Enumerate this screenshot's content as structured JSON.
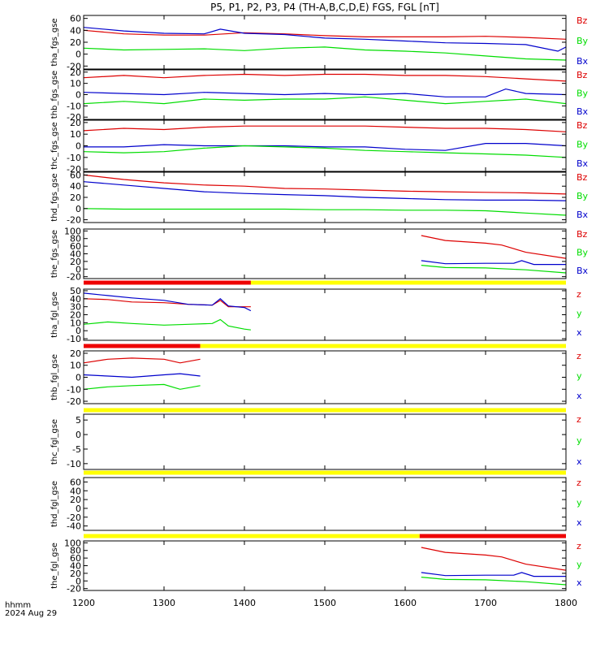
{
  "title": "P5, P1, P2, P3, P4 (TH-A,B,C,D,E) FGS, FGL [nT]",
  "footer": {
    "unit": "hhmm",
    "date": "2024 Aug 29"
  },
  "colors": {
    "x": "#0000cc",
    "y": "#00dd00",
    "z": "#dd0000",
    "bar_yellow": "#ffff00",
    "bar_red": "#ee0000"
  },
  "chart_data": [
    {
      "type": "line",
      "ylabel": "tha_fgs_gse",
      "ylim": [
        -25,
        65
      ],
      "yticks": [
        -20,
        0,
        20,
        40,
        60
      ],
      "xlim": [
        1200,
        1800
      ],
      "xticks": [
        1200,
        1300,
        1400,
        1500,
        1600,
        1700,
        1800
      ],
      "legend": [
        "Bz",
        "By",
        "Bx"
      ],
      "series": [
        {
          "name": "Bz",
          "color": "z",
          "x": [
            1200,
            1250,
            1300,
            1350,
            1400,
            1450,
            1500,
            1550,
            1600,
            1650,
            1700,
            1750,
            1800
          ],
          "values": [
            40,
            34,
            32,
            32,
            36,
            34,
            31,
            29,
            29,
            29,
            30,
            28,
            25
          ]
        },
        {
          "name": "By",
          "color": "x",
          "x": [
            1200,
            1250,
            1300,
            1350,
            1370,
            1400,
            1450,
            1500,
            1550,
            1600,
            1650,
            1700,
            1750,
            1790,
            1800
          ],
          "values": [
            45,
            39,
            35,
            34,
            42,
            35,
            33,
            27,
            25,
            22,
            19,
            18,
            16,
            5,
            12
          ]
        },
        {
          "name": "Bx",
          "color": "y",
          "x": [
            1200,
            1250,
            1300,
            1350,
            1400,
            1450,
            1500,
            1550,
            1600,
            1650,
            1700,
            1750,
            1800
          ],
          "values": [
            10,
            7,
            8,
            9,
            6,
            10,
            12,
            7,
            5,
            2,
            -3,
            -8,
            -10
          ]
        }
      ]
    },
    {
      "type": "line",
      "ylabel": "thb_fgs_gse",
      "ylim": [
        -22,
        22
      ],
      "yticks": [
        -20,
        -10,
        0,
        10,
        20
      ],
      "xlim": [
        1200,
        1800
      ],
      "xticks": [
        1200,
        1300,
        1400,
        1500,
        1600,
        1700,
        1800
      ],
      "legend": [
        "Bz",
        "By",
        "Bx"
      ],
      "series": [
        {
          "name": "Bz",
          "color": "z",
          "x": [
            1200,
            1250,
            1300,
            1350,
            1400,
            1450,
            1500,
            1550,
            1600,
            1650,
            1700,
            1750,
            1800
          ],
          "values": [
            15,
            17,
            15,
            17,
            18,
            17,
            18,
            18,
            17,
            17,
            16,
            14,
            12
          ]
        },
        {
          "name": "By",
          "color": "x",
          "x": [
            1200,
            1250,
            1300,
            1350,
            1400,
            1450,
            1500,
            1550,
            1600,
            1650,
            1700,
            1725,
            1750,
            1800
          ],
          "values": [
            2,
            1,
            0,
            2,
            1,
            0,
            1,
            0,
            1,
            -2,
            -2,
            5,
            1,
            0
          ]
        },
        {
          "name": "Bx",
          "color": "y",
          "x": [
            1200,
            1250,
            1300,
            1350,
            1400,
            1450,
            1500,
            1550,
            1600,
            1650,
            1700,
            1750,
            1800
          ],
          "values": [
            -8,
            -6,
            -8,
            -4,
            -5,
            -4,
            -4,
            -2,
            -5,
            -8,
            -6,
            -4,
            -8
          ]
        }
      ]
    },
    {
      "type": "line",
      "ylabel": "thc_fgs_gse",
      "ylim": [
        -22,
        22
      ],
      "yticks": [
        -20,
        -10,
        0,
        10,
        20
      ],
      "xlim": [
        1200,
        1800
      ],
      "xticks": [
        1200,
        1300,
        1400,
        1500,
        1600,
        1700,
        1800
      ],
      "legend": [
        "Bz",
        "By",
        "Bx"
      ],
      "series": [
        {
          "name": "Bz",
          "color": "z",
          "x": [
            1200,
            1250,
            1300,
            1350,
            1400,
            1450,
            1500,
            1550,
            1600,
            1650,
            1700,
            1750,
            1800
          ],
          "values": [
            13,
            15,
            14,
            16,
            17,
            17,
            17,
            17,
            16,
            15,
            15,
            14,
            12
          ]
        },
        {
          "name": "By",
          "color": "x",
          "x": [
            1200,
            1250,
            1300,
            1350,
            1400,
            1450,
            1500,
            1550,
            1600,
            1650,
            1700,
            1750,
            1800
          ],
          "values": [
            -1,
            -1,
            1,
            0,
            0,
            0,
            -1,
            -1,
            -3,
            -4,
            2,
            2,
            0
          ]
        },
        {
          "name": "Bx",
          "color": "y",
          "x": [
            1200,
            1250,
            1300,
            1350,
            1400,
            1450,
            1500,
            1550,
            1600,
            1650,
            1700,
            1750,
            1800
          ],
          "values": [
            -5,
            -6,
            -5,
            -2,
            0,
            -1,
            -2,
            -4,
            -5,
            -6,
            -7,
            -8,
            -10
          ]
        }
      ]
    },
    {
      "type": "line",
      "ylabel": "thd_fgs_gse",
      "ylim": [
        -25,
        65
      ],
      "yticks": [
        -20,
        0,
        20,
        40,
        60
      ],
      "xlim": [
        1200,
        1800
      ],
      "xticks": [
        1200,
        1300,
        1400,
        1500,
        1600,
        1700,
        1800
      ],
      "legend": [
        "Bz",
        "By",
        "Bx"
      ],
      "series": [
        {
          "name": "Bz",
          "color": "z",
          "x": [
            1200,
            1250,
            1300,
            1350,
            1400,
            1450,
            1500,
            1550,
            1600,
            1650,
            1700,
            1750,
            1800
          ],
          "values": [
            60,
            52,
            46,
            42,
            40,
            36,
            35,
            33,
            31,
            30,
            29,
            28,
            26
          ]
        },
        {
          "name": "By",
          "color": "x",
          "x": [
            1200,
            1250,
            1300,
            1350,
            1400,
            1450,
            1500,
            1550,
            1600,
            1650,
            1700,
            1750,
            1800
          ],
          "values": [
            48,
            42,
            36,
            30,
            27,
            25,
            23,
            20,
            18,
            16,
            15,
            15,
            14
          ]
        },
        {
          "name": "Bx",
          "color": "y",
          "x": [
            1200,
            1250,
            1300,
            1350,
            1400,
            1450,
            1500,
            1550,
            1600,
            1650,
            1700,
            1750,
            1800
          ],
          "values": [
            0,
            -1,
            -1,
            -1,
            -1,
            -1,
            -2,
            -2,
            -3,
            -3,
            -4,
            -8,
            -12
          ]
        }
      ]
    },
    {
      "type": "line",
      "ylabel": "the_fgs_gse",
      "ylim": [
        -25,
        105
      ],
      "yticks": [
        -20,
        0,
        20,
        40,
        60,
        80,
        100
      ],
      "xlim": [
        1200,
        1800
      ],
      "xticks": [
        1200,
        1300,
        1400,
        1500,
        1600,
        1700,
        1800
      ],
      "legend": [
        "Bz",
        "By",
        "Bx"
      ],
      "series": [
        {
          "name": "Bz",
          "color": "z",
          "x": [
            1620,
            1650,
            1700,
            1720,
            1750,
            1800
          ],
          "values": [
            88,
            75,
            68,
            63,
            44,
            28
          ]
        },
        {
          "name": "By",
          "color": "x",
          "x": [
            1620,
            1650,
            1700,
            1735,
            1745,
            1760,
            1800
          ],
          "values": [
            22,
            14,
            15,
            15,
            22,
            12,
            12
          ]
        },
        {
          "name": "Bx",
          "color": "y",
          "x": [
            1620,
            1650,
            1700,
            1750,
            1800
          ],
          "values": [
            10,
            4,
            3,
            -2,
            -10
          ]
        }
      ]
    },
    {
      "type": "line",
      "ylabel": "tha_fgl_gse",
      "ylim": [
        -12,
        52
      ],
      "yticks": [
        -10,
        0,
        10,
        20,
        30,
        40,
        50
      ],
      "xlim": [
        1200,
        1800
      ],
      "xticks": [
        1200,
        1300,
        1400,
        1500,
        1600,
        1700,
        1800
      ],
      "legend": [
        "z",
        "y",
        "x"
      ],
      "bar": [
        {
          "from": 1200,
          "to": 1408,
          "color": "bar_red"
        },
        {
          "from": 1408,
          "to": 1800,
          "color": "bar_yellow"
        }
      ],
      "series": [
        {
          "name": "z",
          "color": "z",
          "x": [
            1200,
            1230,
            1260,
            1300,
            1330,
            1360,
            1370,
            1380,
            1400,
            1408
          ],
          "values": [
            40,
            39,
            36,
            35,
            33,
            32,
            38,
            30,
            30,
            30
          ]
        },
        {
          "name": "y",
          "color": "x",
          "x": [
            1200,
            1230,
            1260,
            1300,
            1330,
            1360,
            1370,
            1380,
            1400,
            1408
          ],
          "values": [
            47,
            44,
            41,
            38,
            33,
            32,
            40,
            31,
            29,
            25
          ]
        },
        {
          "name": "x",
          "color": "y",
          "x": [
            1200,
            1230,
            1260,
            1300,
            1330,
            1360,
            1370,
            1380,
            1400,
            1408
          ],
          "values": [
            8,
            11,
            9,
            7,
            8,
            9,
            14,
            6,
            2,
            1
          ]
        }
      ]
    },
    {
      "type": "line",
      "ylabel": "thb_fgl_gse",
      "ylim": [
        -22,
        22
      ],
      "yticks": [
        -20,
        -10,
        0,
        10,
        20
      ],
      "xlim": [
        1200,
        1800
      ],
      "xticks": [
        1200,
        1300,
        1400,
        1500,
        1600,
        1700,
        1800
      ],
      "legend": [
        "z",
        "y",
        "x"
      ],
      "bar": [
        {
          "from": 1200,
          "to": 1345,
          "color": "bar_red"
        },
        {
          "from": 1345,
          "to": 1800,
          "color": "bar_yellow"
        }
      ],
      "series": [
        {
          "name": "z",
          "color": "z",
          "x": [
            1200,
            1230,
            1260,
            1300,
            1320,
            1345
          ],
          "values": [
            12,
            15,
            16,
            15,
            12,
            15
          ]
        },
        {
          "name": "y",
          "color": "x",
          "x": [
            1200,
            1230,
            1260,
            1300,
            1320,
            1345
          ],
          "values": [
            2,
            1,
            0,
            2,
            3,
            1
          ]
        },
        {
          "name": "x",
          "color": "y",
          "x": [
            1200,
            1230,
            1260,
            1300,
            1320,
            1345
          ],
          "values": [
            -10,
            -8,
            -7,
            -6,
            -10,
            -7
          ]
        }
      ]
    },
    {
      "type": "line",
      "ylabel": "thc_fgl_gse",
      "ylim": [
        -12,
        7
      ],
      "yticks": [
        -10,
        -5,
        0,
        5
      ],
      "xlim": [
        1200,
        1800
      ],
      "xticks": [
        1200,
        1300,
        1400,
        1500,
        1600,
        1700,
        1800
      ],
      "legend": [
        "z",
        "y",
        "x"
      ],
      "bar": [
        {
          "from": 1200,
          "to": 1800,
          "color": "bar_yellow"
        }
      ],
      "series": []
    },
    {
      "type": "line",
      "ylabel": "thd_fgl_gse",
      "ylim": [
        -50,
        70
      ],
      "yticks": [
        -40,
        -20,
        0,
        20,
        40,
        60
      ],
      "xlim": [
        1200,
        1800
      ],
      "xticks": [
        1200,
        1300,
        1400,
        1500,
        1600,
        1700,
        1800
      ],
      "legend": [
        "z",
        "y",
        "x"
      ],
      "bar": [
        {
          "from": 1200,
          "to": 1800,
          "color": "bar_yellow"
        }
      ],
      "series": []
    },
    {
      "type": "line",
      "ylabel": "the_fgl_gse",
      "ylim": [
        -25,
        105
      ],
      "yticks": [
        -20,
        0,
        20,
        40,
        60,
        80,
        100
      ],
      "xlim": [
        1200,
        1800
      ],
      "xticks": [
        1200,
        1300,
        1400,
        1500,
        1600,
        1700,
        1800
      ],
      "legend": [
        "z",
        "y",
        "x"
      ],
      "bar": [
        {
          "from": 1200,
          "to": 1618,
          "color": "bar_yellow"
        },
        {
          "from": 1618,
          "to": 1800,
          "color": "bar_red"
        }
      ],
      "series": [
        {
          "name": "z",
          "color": "z",
          "x": [
            1620,
            1650,
            1700,
            1720,
            1750,
            1800
          ],
          "values": [
            88,
            75,
            68,
            63,
            44,
            28
          ]
        },
        {
          "name": "y",
          "color": "x",
          "x": [
            1620,
            1650,
            1700,
            1735,
            1745,
            1760,
            1800
          ],
          "values": [
            22,
            14,
            15,
            15,
            22,
            12,
            12
          ]
        },
        {
          "name": "x",
          "color": "y",
          "x": [
            1620,
            1650,
            1700,
            1750,
            1800
          ],
          "values": [
            10,
            4,
            3,
            -2,
            -10
          ]
        }
      ]
    }
  ]
}
